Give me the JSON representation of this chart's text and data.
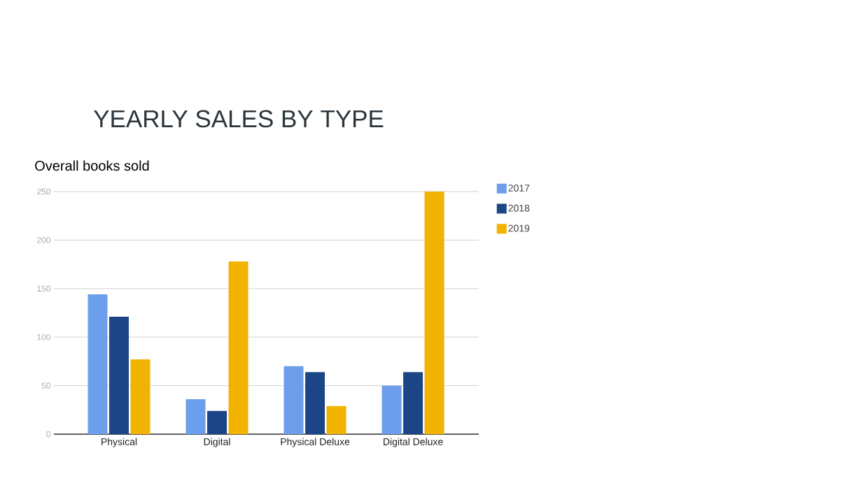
{
  "chart_data": {
    "type": "bar",
    "title": "YEARLY SALES BY TYPE",
    "subtitle": "Overall books sold",
    "categories": [
      "Physical",
      "Digital",
      "Physical Deluxe",
      "Digital Deluxe"
    ],
    "series": [
      {
        "name": "2017",
        "color": "#6d9eeb",
        "values": [
          144,
          36,
          70,
          50
        ]
      },
      {
        "name": "2018",
        "color": "#1c4587",
        "values": [
          121,
          24,
          64,
          64
        ]
      },
      {
        "name": "2019",
        "color": "#f1b300",
        "values": [
          77,
          178,
          29,
          250
        ]
      }
    ],
    "ylim": [
      0,
      250
    ],
    "yticks": [
      0,
      50,
      100,
      150,
      200,
      250
    ],
    "grid": "y",
    "legend": "right"
  }
}
